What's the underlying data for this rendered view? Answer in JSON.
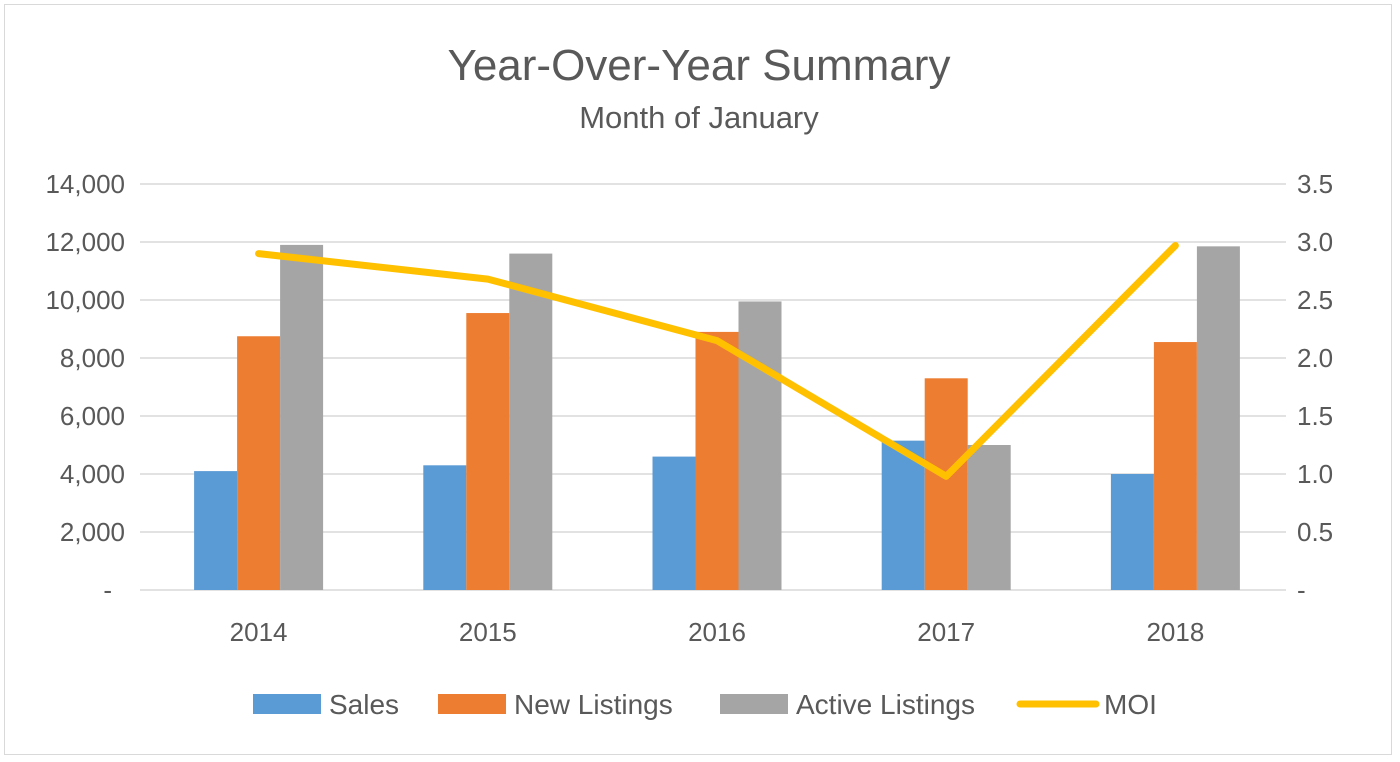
{
  "chart_data": {
    "type": "bar",
    "title": "Year-Over-Year Summary",
    "subtitle": "Month of January",
    "categories": [
      "2014",
      "2015",
      "2016",
      "2017",
      "2018"
    ],
    "series": [
      {
        "name": "Sales",
        "type": "bar",
        "axis": "left",
        "color": "#5B9BD5",
        "values": [
          4100,
          4300,
          4600,
          5150,
          4000
        ]
      },
      {
        "name": "New Listings",
        "type": "bar",
        "axis": "left",
        "color": "#ED7D31",
        "values": [
          8750,
          9550,
          8900,
          7300,
          8550
        ]
      },
      {
        "name": "Active Listings",
        "type": "bar",
        "axis": "left",
        "color": "#A5A5A5",
        "values": [
          11900,
          11600,
          9950,
          5000,
          11850
        ]
      },
      {
        "name": "MOI",
        "type": "line",
        "axis": "right",
        "color": "#FFC000",
        "values": [
          2.9,
          2.68,
          2.15,
          0.98,
          2.97
        ]
      }
    ],
    "ylim": [
      0,
      14000
    ],
    "y2lim": [
      0,
      3.5
    ],
    "y_ticks": [
      "-",
      "2,000",
      "4,000",
      "6,000",
      "8,000",
      "10,000",
      "12,000",
      "14,000"
    ],
    "y2_ticks": [
      "-",
      "0.5",
      "1.0",
      "1.5",
      "2.0",
      "2.5",
      "3.0",
      "3.5"
    ],
    "grid": true,
    "legend": "bottom"
  }
}
